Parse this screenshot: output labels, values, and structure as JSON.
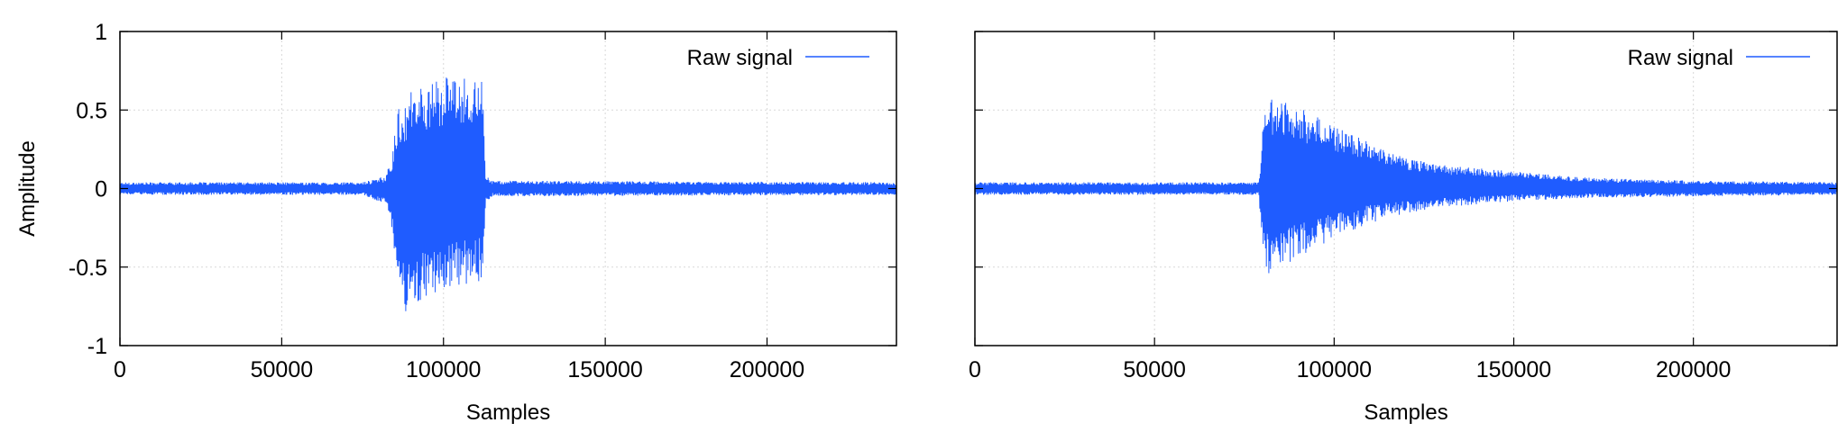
{
  "colors": {
    "signal": "#1f5cff",
    "grid": "#d8d8d8",
    "frame": "#000000"
  },
  "chart_data": [
    {
      "type": "line",
      "title": "",
      "xlabel": "Samples",
      "ylabel": "Amplitude",
      "xlim": [
        0,
        240000
      ],
      "ylim": [
        -1,
        1
      ],
      "x_ticks": [
        0,
        50000,
        100000,
        150000,
        200000
      ],
      "x_tick_labels": [
        "0",
        "50000",
        "100000",
        "150000",
        "200000"
      ],
      "y_ticks": [
        1,
        0.5,
        0,
        -0.5,
        -1
      ],
      "y_tick_labels": [
        "1",
        "0.5",
        "0",
        "-0.5",
        "-1"
      ],
      "grid": true,
      "legend": {
        "label": "Raw signal",
        "position": "top-right"
      },
      "series": [
        {
          "name": "Raw signal",
          "envelope_x": [
            0,
            75000,
            82000,
            84000,
            86000,
            88000,
            95000,
            100000,
            105000,
            110000,
            112000,
            113000,
            115000,
            240000
          ],
          "envelope_upper": [
            0.04,
            0.04,
            0.08,
            0.2,
            0.52,
            0.6,
            0.68,
            0.71,
            0.7,
            0.7,
            0.68,
            0.1,
            0.05,
            0.04
          ],
          "envelope_lower": [
            -0.04,
            -0.04,
            -0.1,
            -0.25,
            -0.6,
            -0.8,
            -0.7,
            -0.65,
            -0.63,
            -0.6,
            -0.6,
            -0.1,
            -0.05,
            -0.04
          ]
        }
      ]
    },
    {
      "type": "line",
      "title": "",
      "xlabel": "Samples",
      "ylabel": "",
      "xlim": [
        0,
        240000
      ],
      "ylim": [
        -1,
        1
      ],
      "x_ticks": [
        0,
        50000,
        100000,
        150000,
        200000
      ],
      "x_tick_labels": [
        "0",
        "50000",
        "100000",
        "150000",
        "200000"
      ],
      "y_ticks": [
        1,
        0.5,
        0,
        -0.5,
        -1
      ],
      "y_tick_labels": [],
      "grid": true,
      "legend": {
        "label": "Raw signal",
        "position": "top-right"
      },
      "series": [
        {
          "name": "Raw signal",
          "envelope_x": [
            0,
            79000,
            80500,
            82000,
            85000,
            90000,
            95000,
            100000,
            110000,
            120000,
            130000,
            150000,
            170000,
            200000,
            240000
          ],
          "envelope_upper": [
            0.04,
            0.04,
            0.5,
            0.6,
            0.57,
            0.52,
            0.46,
            0.4,
            0.3,
            0.2,
            0.15,
            0.11,
            0.07,
            0.05,
            0.04
          ],
          "envelope_lower": [
            -0.04,
            -0.04,
            -0.5,
            -0.55,
            -0.5,
            -0.44,
            -0.38,
            -0.32,
            -0.22,
            -0.16,
            -0.12,
            -0.08,
            -0.06,
            -0.05,
            -0.04
          ]
        }
      ]
    }
  ]
}
